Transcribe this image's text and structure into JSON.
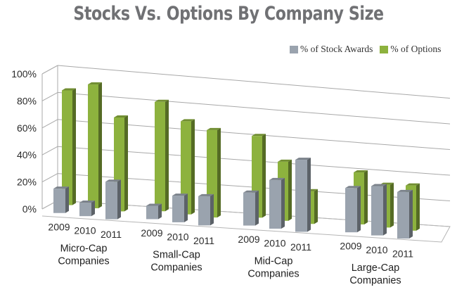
{
  "chart_data": {
    "type": "bar",
    "title": "Stocks Vs. Options By Company Size",
    "xlabel": "",
    "ylabel": "",
    "ylim": [
      0,
      100
    ],
    "y_ticks": [
      "0%",
      "20%",
      "40%",
      "60%",
      "80%",
      "100%"
    ],
    "y_tick_values": [
      0,
      20,
      40,
      60,
      80,
      100
    ],
    "grid": true,
    "legend_position": "top-right",
    "groups": [
      {
        "label_line1": "Micro-Cap",
        "label_line2": "Companies",
        "years": [
          "2009",
          "2010",
          "2011"
        ]
      },
      {
        "label_line1": "Small-Cap",
        "label_line2": "Companies",
        "years": [
          "2009",
          "2010",
          "2011"
        ]
      },
      {
        "label_line1": "Mid-Cap",
        "label_line2": "Companies",
        "years": [
          "2009",
          "2010",
          "2011"
        ]
      },
      {
        "label_line1": "Large-Cap",
        "label_line2": "Companies",
        "years": [
          "2009",
          "2010",
          "2011"
        ]
      }
    ],
    "series": [
      {
        "name": "% of Stock Awards",
        "color": "#9aa3ae",
        "values": [
          [
            18,
            10,
            28
          ],
          [
            10,
            20,
            22
          ],
          [
            25,
            37,
            55
          ],
          [
            34,
            38,
            36
          ]
        ]
      },
      {
        "name": "% of Options",
        "color": "#8db23e",
        "values": [
          [
            85,
            92,
            70
          ],
          [
            82,
            70,
            66
          ],
          [
            62,
            45,
            25
          ],
          [
            40,
            33,
            35
          ]
        ]
      }
    ]
  }
}
